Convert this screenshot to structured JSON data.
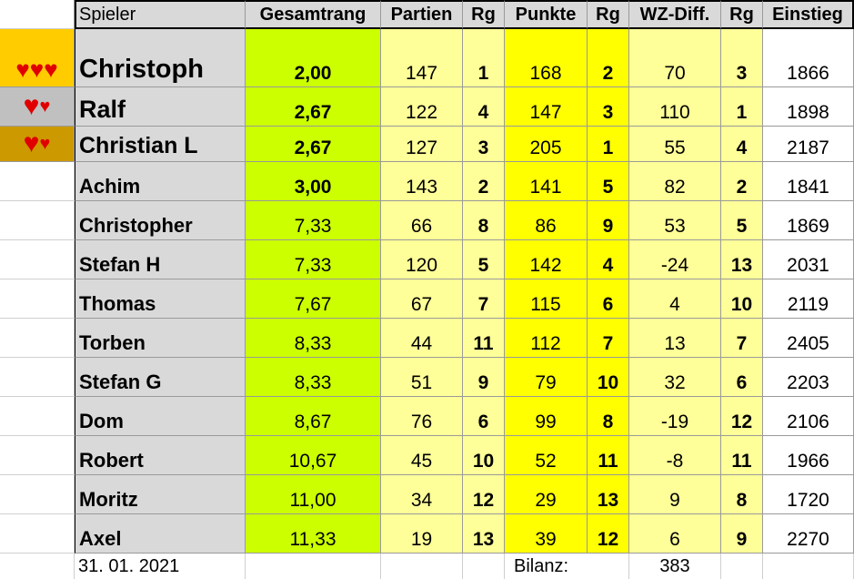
{
  "headers": {
    "spieler": "Spieler",
    "gesamtrang": "Gesamtrang",
    "partien": "Partien",
    "rg1": "Rg",
    "punkte": "Punkte",
    "rg2": "Rg",
    "wzdiff": "WZ-Diff.",
    "rg3": "Rg",
    "einstieg": "Einstieg"
  },
  "rows": [
    {
      "hearts": "♥♥♥",
      "name": "Christoph",
      "gesamt": "2,00",
      "partien": "147",
      "rg1": "1",
      "punkte": "168",
      "rg2": "2",
      "wz": "70",
      "rg3": "3",
      "einstieg": "1866"
    },
    {
      "hearts": "♥♥",
      "name": "Ralf",
      "gesamt": "2,67",
      "partien": "122",
      "rg1": "4",
      "punkte": "147",
      "rg2": "3",
      "wz": "110",
      "rg3": "1",
      "einstieg": "1898"
    },
    {
      "hearts": "♥♥",
      "name": "Christian L",
      "gesamt": "2,67",
      "partien": "127",
      "rg1": "3",
      "punkte": "205",
      "rg2": "1",
      "wz": "55",
      "rg3": "4",
      "einstieg": "2187"
    },
    {
      "hearts": "",
      "name": "Achim",
      "gesamt": "3,00",
      "partien": "143",
      "rg1": "2",
      "punkte": "141",
      "rg2": "5",
      "wz": "82",
      "rg3": "2",
      "einstieg": "1841"
    },
    {
      "hearts": "",
      "name": "Christopher",
      "gesamt": "7,33",
      "partien": "66",
      "rg1": "8",
      "punkte": "86",
      "rg2": "9",
      "wz": "53",
      "rg3": "5",
      "einstieg": "1869"
    },
    {
      "hearts": "",
      "name": "Stefan H",
      "gesamt": "7,33",
      "partien": "120",
      "rg1": "5",
      "punkte": "142",
      "rg2": "4",
      "wz": "-24",
      "rg3": "13",
      "einstieg": "2031"
    },
    {
      "hearts": "",
      "name": "Thomas",
      "gesamt": "7,67",
      "partien": "67",
      "rg1": "7",
      "punkte": "115",
      "rg2": "6",
      "wz": "4",
      "rg3": "10",
      "einstieg": "2119"
    },
    {
      "hearts": "",
      "name": "Torben",
      "gesamt": "8,33",
      "partien": "44",
      "rg1": "11",
      "punkte": "112",
      "rg2": "7",
      "wz": "13",
      "rg3": "7",
      "einstieg": "2405"
    },
    {
      "hearts": "",
      "name": "Stefan G",
      "gesamt": "8,33",
      "partien": "51",
      "rg1": "9",
      "punkte": "79",
      "rg2": "10",
      "wz": "32",
      "rg3": "6",
      "einstieg": "2203"
    },
    {
      "hearts": "",
      "name": "Dom",
      "gesamt": "8,67",
      "partien": "76",
      "rg1": "6",
      "punkte": "99",
      "rg2": "8",
      "wz": "-19",
      "rg3": "12",
      "einstieg": "2106"
    },
    {
      "hearts": "",
      "name": "Robert",
      "gesamt": "10,67",
      "partien": "45",
      "rg1": "10",
      "punkte": "52",
      "rg2": "11",
      "wz": "-8",
      "rg3": "11",
      "einstieg": "1966"
    },
    {
      "hearts": "",
      "name": "Moritz",
      "gesamt": "11,00",
      "partien": "34",
      "rg1": "12",
      "punkte": "29",
      "rg2": "13",
      "wz": "9",
      "rg3": "8",
      "einstieg": "1720"
    },
    {
      "hearts": "",
      "name": "Axel",
      "gesamt": "11,33",
      "partien": "19",
      "rg1": "13",
      "punkte": "39",
      "rg2": "12",
      "wz": "6",
      "rg3": "9",
      "einstieg": "2270"
    }
  ],
  "footer": {
    "date": "31. 01. 2021",
    "bilanz_label": "Bilanz:",
    "bilanz_value": "383"
  },
  "colors": {
    "name_bg": "#d9d9d9",
    "gesamt_bg": "#ccff00",
    "light_yellow": "#ffff99",
    "yellow": "#ffff00",
    "gold": "#ffcc00",
    "silver": "#c0c0c0",
    "bronze": "#cc9900",
    "heart": "#e00000"
  }
}
